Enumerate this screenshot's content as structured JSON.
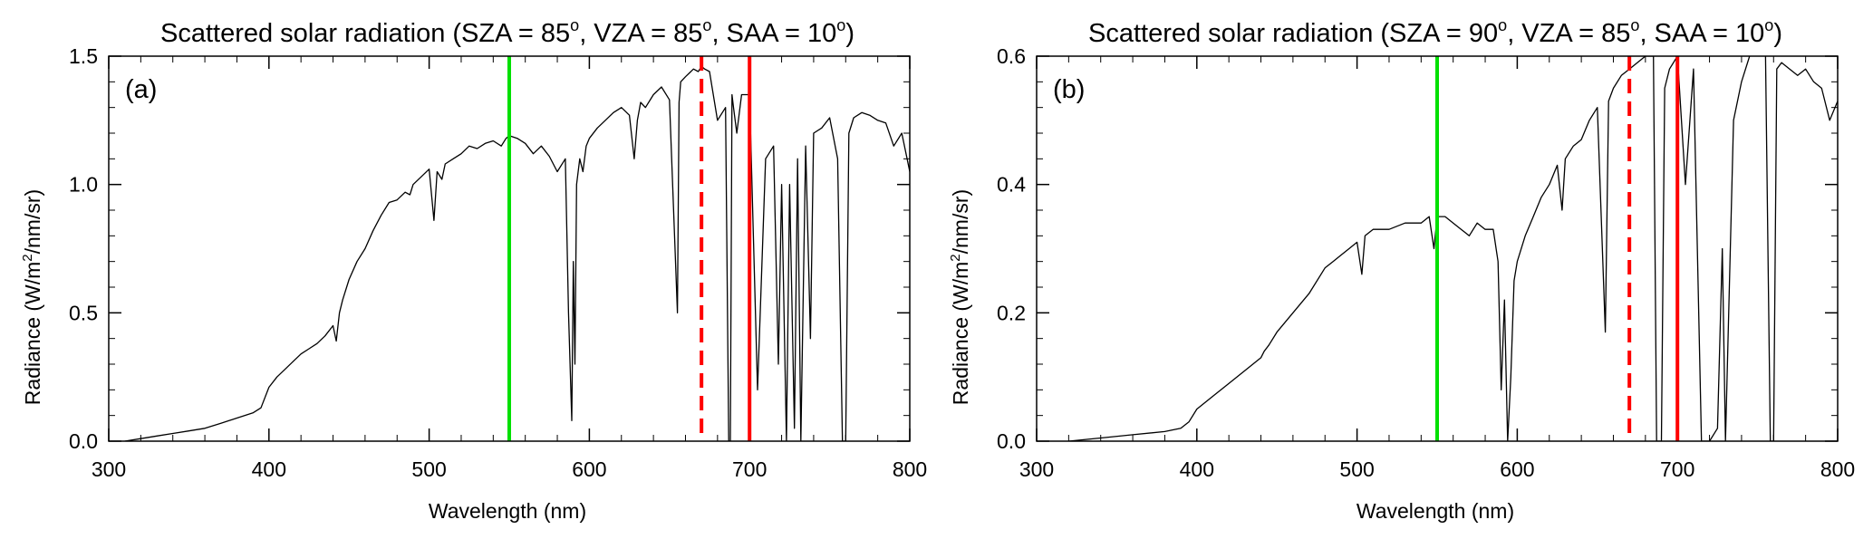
{
  "chart_data": [
    {
      "type": "line",
      "panel_label": "(a)",
      "title": "Scattered solar radiation (SZA = 85°, VZA = 85°, SAA = 10°)",
      "title_parts": {
        "prefix": "Scattered solar radiation (SZA = 85",
        "mid1": ", VZA = 85",
        "mid2": ", SAA = 10",
        "suffix": ")",
        "sup": "o"
      },
      "xlabel": "Wavelength (nm)",
      "ylabel_parts": {
        "prefix": "Radiance (W/m",
        "sup": "2",
        "suffix": "/nm/sr)"
      },
      "xlim": [
        300,
        800
      ],
      "ylim": [
        0,
        1.5
      ],
      "xticks": [
        300,
        400,
        500,
        600,
        700,
        800
      ],
      "xtick_labels": [
        "300",
        "400",
        "500",
        "600",
        "700",
        "800"
      ],
      "yticks": [
        0,
        0.5,
        1.0,
        1.5
      ],
      "ytick_labels": [
        "0.0",
        "0.5",
        "1.0",
        "1.5"
      ],
      "vlines": [
        {
          "x": 550,
          "color": "#00e000",
          "style": "solid"
        },
        {
          "x": 670,
          "color": "#ff0000",
          "style": "dashed"
        },
        {
          "x": 700,
          "color": "#ff0000",
          "style": "solid"
        }
      ],
      "series": [
        {
          "name": "radiance",
          "color": "#000000",
          "x": [
            310,
            320,
            330,
            340,
            350,
            360,
            370,
            380,
            390,
            395,
            400,
            405,
            410,
            415,
            420,
            425,
            430,
            435,
            440,
            442,
            444,
            446,
            450,
            455,
            460,
            465,
            470,
            475,
            480,
            485,
            488,
            490,
            495,
            500,
            503,
            505,
            508,
            510,
            515,
            520,
            525,
            530,
            535,
            540,
            545,
            548,
            550,
            555,
            560,
            565,
            570,
            575,
            580,
            585,
            587,
            589,
            590,
            591,
            592,
            594,
            596,
            598,
            600,
            605,
            610,
            615,
            620,
            625,
            628,
            630,
            632,
            635,
            640,
            645,
            650,
            655,
            656,
            657,
            660,
            665,
            668,
            670,
            672,
            675,
            680,
            685,
            687,
            688,
            689,
            690,
            692,
            695,
            700,
            705,
            710,
            715,
            718,
            720,
            723,
            725,
            728,
            730,
            732,
            735,
            738,
            740,
            745,
            750,
            755,
            758,
            760,
            762,
            765,
            770,
            775,
            780,
            785,
            790,
            795,
            800
          ],
          "y": [
            0.0,
            0.01,
            0.02,
            0.03,
            0.04,
            0.05,
            0.07,
            0.09,
            0.11,
            0.13,
            0.21,
            0.25,
            0.28,
            0.31,
            0.34,
            0.36,
            0.38,
            0.41,
            0.45,
            0.39,
            0.5,
            0.55,
            0.63,
            0.7,
            0.75,
            0.82,
            0.88,
            0.93,
            0.94,
            0.97,
            0.96,
            1.0,
            1.03,
            1.06,
            0.86,
            1.05,
            1.02,
            1.08,
            1.1,
            1.12,
            1.15,
            1.14,
            1.16,
            1.17,
            1.15,
            1.18,
            1.19,
            1.18,
            1.16,
            1.12,
            1.15,
            1.11,
            1.05,
            1.1,
            0.5,
            0.08,
            0.7,
            0.3,
            1.0,
            1.1,
            1.05,
            1.15,
            1.18,
            1.22,
            1.25,
            1.28,
            1.3,
            1.27,
            1.1,
            1.25,
            1.32,
            1.3,
            1.35,
            1.38,
            1.33,
            0.5,
            1.32,
            1.4,
            1.42,
            1.45,
            1.44,
            1.46,
            1.45,
            1.44,
            1.25,
            1.3,
            0.0,
            0.0,
            1.35,
            1.3,
            1.2,
            1.35,
            1.35,
            0.2,
            1.1,
            1.15,
            0.3,
            1.0,
            0.0,
            1.0,
            0.05,
            1.1,
            0.0,
            1.15,
            0.4,
            1.2,
            1.22,
            1.26,
            1.1,
            0.0,
            0.0,
            1.2,
            1.26,
            1.28,
            1.27,
            1.25,
            1.24,
            1.15,
            1.2,
            1.05
          ]
        }
      ]
    },
    {
      "type": "line",
      "panel_label": "(b)",
      "title": "Scattered solar radiation (SZA = 90°, VZA = 85°, SAA = 10°)",
      "title_parts": {
        "prefix": "Scattered solar radiation (SZA = 90",
        "mid1": ", VZA = 85",
        "mid2": ", SAA = 10",
        "suffix": ")",
        "sup": "o"
      },
      "xlabel": "Wavelength (nm)",
      "ylabel_parts": {
        "prefix": "Radiance (W/m",
        "sup": "2",
        "suffix": "/nm/sr)"
      },
      "xlim": [
        300,
        800
      ],
      "ylim": [
        0,
        0.6
      ],
      "xticks": [
        300,
        400,
        500,
        600,
        700,
        800
      ],
      "xtick_labels": [
        "300",
        "400",
        "500",
        "600",
        "700",
        "800"
      ],
      "yticks": [
        0,
        0.2,
        0.4,
        0.6
      ],
      "ytick_labels": [
        "0.0",
        "0.2",
        "0.4",
        "0.6"
      ],
      "vlines": [
        {
          "x": 550,
          "color": "#00e000",
          "style": "solid"
        },
        {
          "x": 670,
          "color": "#ff0000",
          "style": "dashed"
        },
        {
          "x": 700,
          "color": "#ff0000",
          "style": "solid"
        }
      ],
      "series": [
        {
          "name": "radiance",
          "color": "#000000",
          "x": [
            320,
            340,
            360,
            380,
            390,
            395,
            400,
            410,
            420,
            430,
            440,
            442,
            445,
            450,
            460,
            470,
            480,
            485,
            490,
            495,
            500,
            503,
            505,
            510,
            520,
            530,
            540,
            545,
            548,
            550,
            555,
            560,
            565,
            570,
            575,
            580,
            585,
            588,
            590,
            592,
            594,
            596,
            598,
            600,
            605,
            610,
            615,
            620,
            625,
            628,
            630,
            635,
            640,
            645,
            650,
            655,
            657,
            660,
            665,
            670,
            675,
            680,
            685,
            687,
            690,
            692,
            695,
            700,
            705,
            710,
            715,
            720,
            725,
            728,
            730,
            735,
            740,
            745,
            750,
            755,
            758,
            760,
            762,
            765,
            770,
            775,
            780,
            785,
            790,
            795,
            800
          ],
          "y": [
            0.0,
            0.005,
            0.01,
            0.015,
            0.02,
            0.03,
            0.05,
            0.07,
            0.09,
            0.11,
            0.13,
            0.14,
            0.15,
            0.17,
            0.2,
            0.23,
            0.27,
            0.28,
            0.29,
            0.3,
            0.31,
            0.26,
            0.32,
            0.33,
            0.33,
            0.34,
            0.34,
            0.35,
            0.3,
            0.35,
            0.35,
            0.34,
            0.33,
            0.32,
            0.34,
            0.33,
            0.33,
            0.28,
            0.08,
            0.22,
            0.0,
            0.1,
            0.25,
            0.28,
            0.32,
            0.35,
            0.38,
            0.4,
            0.43,
            0.36,
            0.44,
            0.46,
            0.47,
            0.5,
            0.52,
            0.17,
            0.53,
            0.55,
            0.57,
            0.58,
            0.59,
            0.6,
            0.6,
            0.0,
            0.0,
            0.55,
            0.58,
            0.6,
            0.4,
            0.58,
            0.0,
            0.0,
            0.02,
            0.3,
            0.0,
            0.5,
            0.56,
            0.6,
            0.61,
            0.6,
            0.0,
            0.0,
            0.58,
            0.59,
            0.58,
            0.57,
            0.58,
            0.56,
            0.55,
            0.5,
            0.53
          ]
        }
      ]
    }
  ]
}
